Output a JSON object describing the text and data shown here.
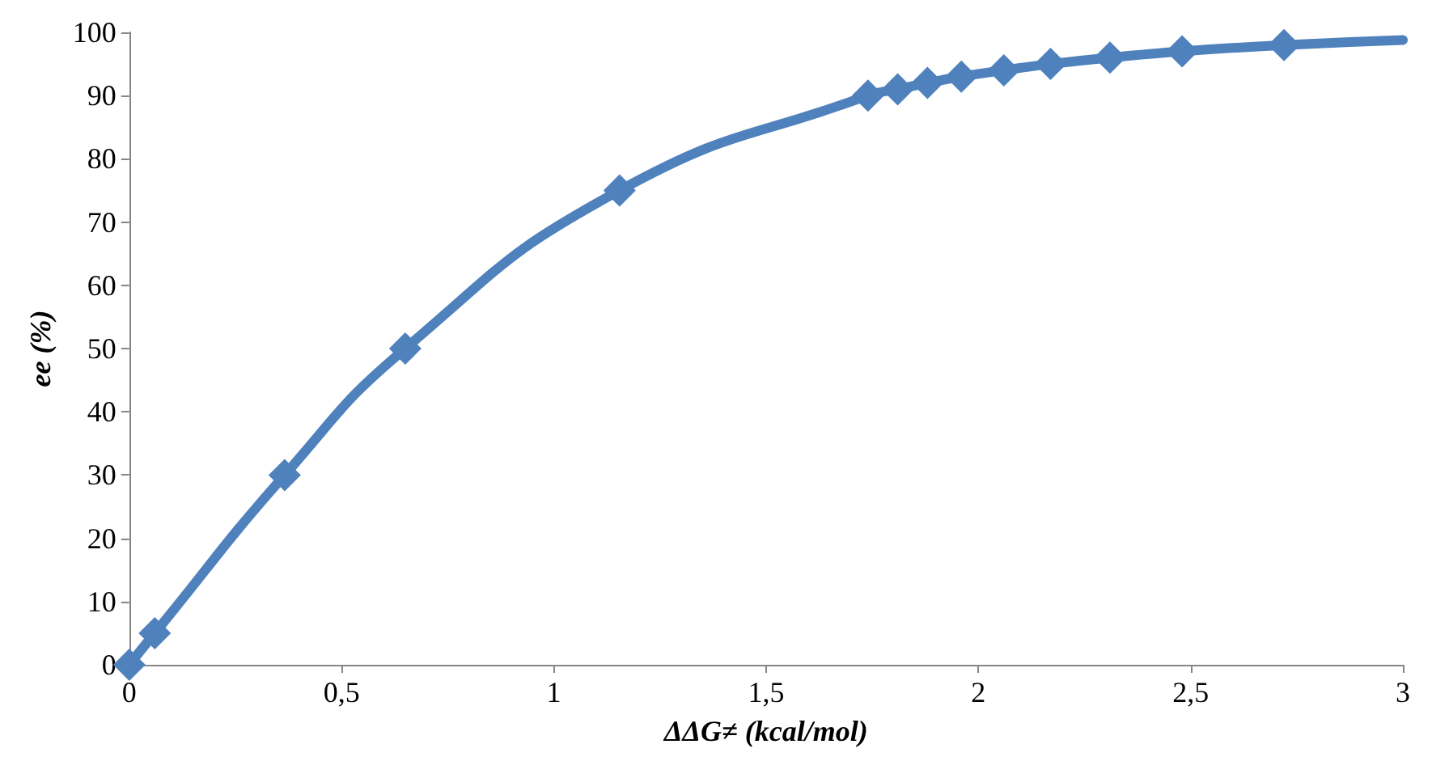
{
  "chart_data": {
    "type": "line",
    "xlabel": "ΔΔG≠ (kcal/mol)",
    "ylabel": "ee (%)",
    "grid": false,
    "xlim": [
      0,
      3
    ],
    "xticks": [
      0,
      {
        "value": 0.5,
        "label": "0,5"
      },
      1,
      {
        "value": 1.5,
        "label": "1,5"
      },
      2,
      {
        "value": 2.5,
        "label": "2,5"
      },
      3
    ],
    "ylim": [
      0,
      100
    ],
    "yticks": [
      0,
      10,
      20,
      30,
      40,
      50,
      60,
      70,
      80,
      90,
      100
    ],
    "series": [
      {
        "marker": "none",
        "line_style": "solid",
        "color": "#4f81bd",
        "x": [
          0,
          0.06,
          0.366,
          0.65,
          1.155,
          1.74,
          1.81,
          1.88,
          1.96,
          2.06,
          2.17,
          2.31,
          2.48,
          2.72,
          3
        ],
        "values": [
          0,
          5,
          30,
          50,
          75,
          90,
          91,
          92,
          93,
          94,
          95,
          96,
          97,
          98,
          98.8
        ]
      },
      {
        "type": "scatter",
        "marker": "diamond",
        "color": "#4f81bd",
        "x": [
          0,
          0.06,
          0.366,
          0.65,
          1.155,
          1.74,
          1.81,
          1.88,
          1.96,
          2.06,
          2.17,
          2.31,
          2.48,
          2.72
        ],
        "values": [
          0,
          5,
          30,
          50,
          75,
          90,
          91,
          92,
          93,
          94,
          95,
          96,
          97,
          98
        ]
      }
    ]
  }
}
